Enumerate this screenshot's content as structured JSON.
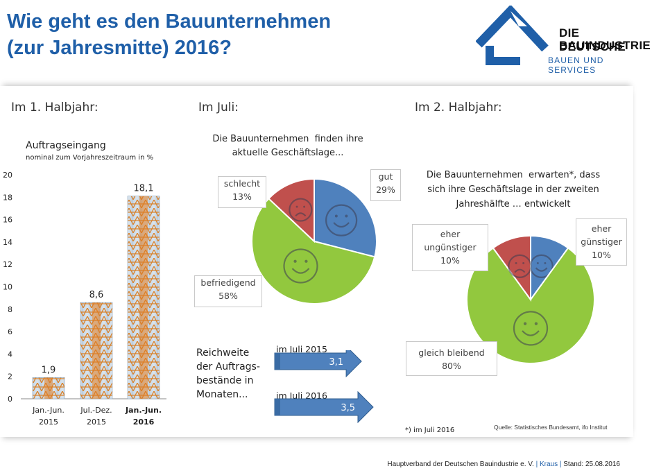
{
  "title_line1": "Wie geht es den Bauunternehmen",
  "title_line2": "(zur Jahresmitte) 2016?",
  "logo": {
    "line1": "DIE DEUTSCHE",
    "line2": "BAUINDUSTRIE",
    "line3": "BAUEN UND SERVICES",
    "color": "#1f5fa8"
  },
  "sections": {
    "h1": "Im 1. Halbjahr:",
    "july": "Im Juli:",
    "h2": "Im 2. Halbjahr:"
  },
  "chart_data": [
    {
      "type": "bar",
      "title": "Auftragseingang",
      "subtitle": "nominal zum Vorjahreszeitraum in %",
      "categories": [
        [
          "Jan.-Jun.",
          "2015"
        ],
        [
          "Jul.-Dez.",
          "2015"
        ],
        [
          "Jan.-Jun.",
          "2016"
        ]
      ],
      "values": [
        1.9,
        8.6,
        18.1
      ],
      "value_labels": [
        "1,9",
        "8,6",
        "18,1"
      ],
      "ylim": [
        0,
        20
      ],
      "yticks": [
        0,
        2,
        4,
        6,
        8,
        10,
        12,
        14,
        16,
        18,
        20
      ],
      "grid": false,
      "bold_category_index": 2
    },
    {
      "type": "pie",
      "title_line1": "Die Bauunternehmen  finden ihre",
      "title_line2": "aktuelle Geschäftslage...",
      "slices": [
        {
          "label": "gut",
          "value": 29,
          "value_label": "29%",
          "color": "#4f81bd",
          "face": "smile"
        },
        {
          "label": "befriedigend",
          "value": 58,
          "value_label": "58%",
          "color": "#92c83e",
          "face": "smile"
        },
        {
          "label": "schlecht",
          "value": 13,
          "value_label": "13%",
          "color": "#c0504d",
          "face": "frown"
        }
      ]
    },
    {
      "type": "pie",
      "title_line1": "Die Bauunternehmen  erwarten*, dass",
      "title_line2": "sich ihre Geschäftslage in der zweiten",
      "title_line3": "Jahreshälfte … entwickelt",
      "slices": [
        {
          "label_line1": "eher",
          "label_line2": "günstiger",
          "value": 10,
          "value_label": "10%",
          "color": "#4f81bd",
          "face": "smile"
        },
        {
          "label_line1": "gleich bleibend",
          "label_line2": "",
          "value": 80,
          "value_label": "80%",
          "color": "#92c83e",
          "face": "smile"
        },
        {
          "label_line1": "eher",
          "label_line2": "ungünstiger",
          "value": 10,
          "value_label": "10%",
          "color": "#c0504d",
          "face": "frown"
        }
      ]
    }
  ],
  "reach": {
    "label_lines": [
      "Reichweite",
      "der Auftrags-",
      "bestände in",
      "Monaten..."
    ],
    "arrows": [
      {
        "label": "im Juli 2015",
        "value": 3.1,
        "value_label": "3,1"
      },
      {
        "label": "im Juli 2016",
        "value": 3.5,
        "value_label": "3,5"
      }
    ],
    "color": "#4f81bd"
  },
  "footnote": "*) im Juli 2016",
  "source": "Quelle: Statistisches Bundesamt, ifo Institut",
  "footer": {
    "org": "Hauptverband der Deutschen Bauindustrie e. V.",
    "author": "Kraus",
    "date": "Stand: 25.08.2016"
  }
}
